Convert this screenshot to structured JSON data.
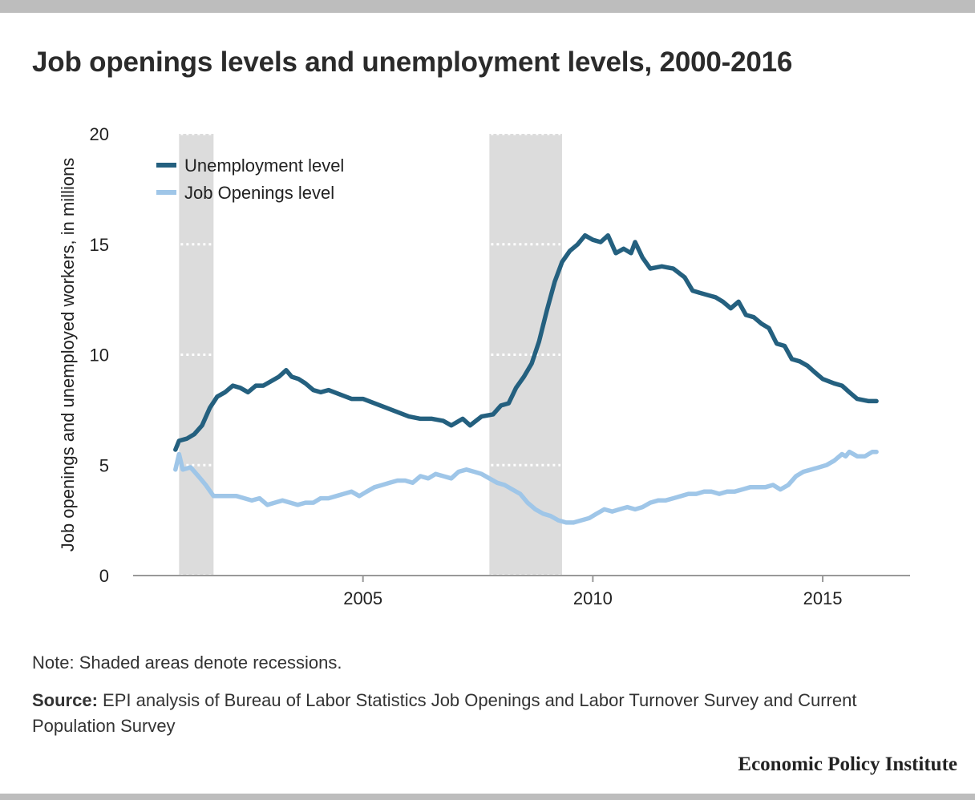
{
  "title": "Job openings levels and unemployment levels, 2000-2016",
  "note": "Note: Shaded areas denote recessions.",
  "source_label": "Source:",
  "source_text": "EPI analysis of Bureau of Labor Statistics Job Openings and Labor Turnover Survey and Current Population Survey",
  "brand": "Economic Policy Institute",
  "chart_data": {
    "type": "line",
    "ylabel": "Job openings and unemployed workers, in millions",
    "xlim": [
      2000.0,
      2016.9
    ],
    "ylim": [
      0,
      20
    ],
    "xticks": [
      2005,
      2010,
      2015
    ],
    "yticks": [
      0,
      5,
      10,
      15,
      20
    ],
    "grid": "dotted horizontal lines inside recession bands",
    "legend_position": "top-left",
    "recessions": [
      [
        2001.0,
        2001.75
      ],
      [
        2007.75,
        2009.33
      ]
    ],
    "colors": {
      "unemployment": "#24607f",
      "job_openings": "#9fc6e8",
      "recession": "#dcdcdc",
      "axis": "#999999"
    },
    "series": [
      {
        "name": "Unemployment level",
        "x": [
          2000.92,
          2001.0,
          2001.17,
          2001.33,
          2001.5,
          2001.67,
          2001.83,
          2002.0,
          2002.17,
          2002.33,
          2002.5,
          2002.67,
          2002.83,
          2003.0,
          2003.17,
          2003.33,
          2003.45,
          2003.6,
          2003.75,
          2003.92,
          2004.08,
          2004.25,
          2004.5,
          2004.75,
          2005.0,
          2005.25,
          2005.5,
          2005.75,
          2006.0,
          2006.25,
          2006.5,
          2006.75,
          2006.92,
          2007.17,
          2007.33,
          2007.58,
          2007.83,
          2008.0,
          2008.17,
          2008.33,
          2008.5,
          2008.67,
          2008.83,
          2009.0,
          2009.17,
          2009.33,
          2009.5,
          2009.67,
          2009.83,
          2010.0,
          2010.17,
          2010.33,
          2010.5,
          2010.67,
          2010.83,
          2010.92,
          2011.08,
          2011.25,
          2011.5,
          2011.75,
          2012.0,
          2012.17,
          2012.33,
          2012.5,
          2012.67,
          2012.83,
          2013.0,
          2013.17,
          2013.33,
          2013.5,
          2013.67,
          2013.83,
          2014.0,
          2014.17,
          2014.33,
          2014.5,
          2014.67,
          2014.83,
          2015.0,
          2015.25,
          2015.42,
          2015.58,
          2015.75,
          2016.0,
          2016.17
        ],
        "values": [
          5.7,
          6.1,
          6.2,
          6.4,
          6.8,
          7.6,
          8.1,
          8.3,
          8.6,
          8.5,
          8.3,
          8.6,
          8.6,
          8.8,
          9.0,
          9.3,
          9.0,
          8.9,
          8.7,
          8.4,
          8.3,
          8.4,
          8.2,
          8.0,
          8.0,
          7.8,
          7.6,
          7.4,
          7.2,
          7.1,
          7.1,
          7.0,
          6.8,
          7.1,
          6.8,
          7.2,
          7.3,
          7.7,
          7.8,
          8.5,
          9.0,
          9.6,
          10.6,
          12.0,
          13.3,
          14.2,
          14.7,
          15.0,
          15.4,
          15.2,
          15.1,
          15.4,
          14.6,
          14.8,
          14.6,
          15.1,
          14.4,
          13.9,
          14.0,
          13.9,
          13.5,
          12.9,
          12.8,
          12.7,
          12.6,
          12.4,
          12.1,
          12.4,
          11.8,
          11.7,
          11.4,
          11.2,
          10.5,
          10.4,
          9.8,
          9.7,
          9.5,
          9.2,
          8.9,
          8.7,
          8.6,
          8.3,
          8.0,
          7.9,
          7.9
        ]
      },
      {
        "name": "Job Openings level",
        "x": [
          2000.92,
          2001.0,
          2001.08,
          2001.25,
          2001.42,
          2001.58,
          2001.75,
          2001.92,
          2002.08,
          2002.25,
          2002.42,
          2002.58,
          2002.75,
          2002.92,
          2003.08,
          2003.25,
          2003.42,
          2003.58,
          2003.75,
          2003.92,
          2004.08,
          2004.25,
          2004.42,
          2004.58,
          2004.75,
          2004.92,
          2005.08,
          2005.25,
          2005.42,
          2005.58,
          2005.75,
          2005.92,
          2006.08,
          2006.25,
          2006.42,
          2006.58,
          2006.75,
          2006.92,
          2007.08,
          2007.25,
          2007.42,
          2007.58,
          2007.75,
          2007.92,
          2008.08,
          2008.25,
          2008.42,
          2008.58,
          2008.75,
          2008.92,
          2009.08,
          2009.25,
          2009.42,
          2009.58,
          2009.75,
          2009.92,
          2010.08,
          2010.25,
          2010.42,
          2010.58,
          2010.75,
          2010.92,
          2011.08,
          2011.25,
          2011.42,
          2011.58,
          2011.75,
          2011.92,
          2012.08,
          2012.25,
          2012.42,
          2012.58,
          2012.75,
          2012.92,
          2013.08,
          2013.25,
          2013.42,
          2013.58,
          2013.75,
          2013.92,
          2014.08,
          2014.25,
          2014.42,
          2014.58,
          2014.75,
          2014.92,
          2015.08,
          2015.25,
          2015.42,
          2015.5,
          2015.58,
          2015.75,
          2015.92,
          2016.08,
          2016.17
        ],
        "values": [
          4.8,
          5.5,
          4.8,
          4.9,
          4.5,
          4.1,
          3.6,
          3.6,
          3.6,
          3.6,
          3.5,
          3.4,
          3.5,
          3.2,
          3.3,
          3.4,
          3.3,
          3.2,
          3.3,
          3.3,
          3.5,
          3.5,
          3.6,
          3.7,
          3.8,
          3.6,
          3.8,
          4.0,
          4.1,
          4.2,
          4.3,
          4.3,
          4.2,
          4.5,
          4.4,
          4.6,
          4.5,
          4.4,
          4.7,
          4.8,
          4.7,
          4.6,
          4.4,
          4.2,
          4.1,
          3.9,
          3.7,
          3.3,
          3.0,
          2.8,
          2.7,
          2.5,
          2.4,
          2.4,
          2.5,
          2.6,
          2.8,
          3.0,
          2.9,
          3.0,
          3.1,
          3.0,
          3.1,
          3.3,
          3.4,
          3.4,
          3.5,
          3.6,
          3.7,
          3.7,
          3.8,
          3.8,
          3.7,
          3.8,
          3.8,
          3.9,
          4.0,
          4.0,
          4.0,
          4.1,
          3.9,
          4.1,
          4.5,
          4.7,
          4.8,
          4.9,
          5.0,
          5.2,
          5.5,
          5.4,
          5.6,
          5.4,
          5.4,
          5.6,
          5.6
        ]
      }
    ]
  }
}
